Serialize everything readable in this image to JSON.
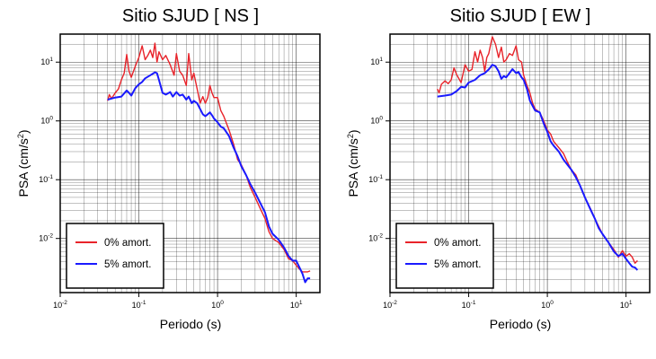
{
  "chart_data": [
    {
      "type": "line",
      "title": "Sitio SJUD [ NS ]",
      "xlabel": "Periodo (s)",
      "ylabel": "PSA (cm/s2)",
      "ylabel_parts": [
        "PSA (cm/s",
        "2",
        ")"
      ],
      "xscale": "log",
      "yscale": "log",
      "xlim": [
        0.01,
        20
      ],
      "ylim": [
        0.0012,
        30
      ],
      "x_ticks": [
        {
          "mant": "10",
          "exp": "-2",
          "value": 0.01
        },
        {
          "mant": "10",
          "exp": "-1",
          "value": 0.1
        },
        {
          "mant": "10",
          "exp": "0",
          "value": 1
        },
        {
          "mant": "10",
          "exp": "1",
          "value": 10
        }
      ],
      "y_ticks": [
        {
          "mant": "10",
          "exp": "-2",
          "value": 0.01
        },
        {
          "mant": "10",
          "exp": "-1",
          "value": 0.1
        },
        {
          "mant": "10",
          "exp": "0",
          "value": 1
        },
        {
          "mant": "10",
          "exp": "1",
          "value": 10
        }
      ],
      "grid": true,
      "legend_position": "bottom-left",
      "series": [
        {
          "name": "0% amort.",
          "color": "#e8232a",
          "points": [
            [
              0.04,
              2.2
            ],
            [
              0.042,
              2.8
            ],
            [
              0.045,
              2.4
            ],
            [
              0.05,
              3.0
            ],
            [
              0.055,
              3.5
            ],
            [
              0.06,
              5.0
            ],
            [
              0.065,
              6.5
            ],
            [
              0.07,
              13.5
            ],
            [
              0.075,
              7.0
            ],
            [
              0.08,
              5.5
            ],
            [
              0.09,
              8.5
            ],
            [
              0.1,
              12.0
            ],
            [
              0.11,
              19.0
            ],
            [
              0.12,
              11.0
            ],
            [
              0.13,
              13.0
            ],
            [
              0.14,
              16.0
            ],
            [
              0.15,
              12.0
            ],
            [
              0.16,
              21.0
            ],
            [
              0.17,
              10.0
            ],
            [
              0.18,
              15.0
            ],
            [
              0.2,
              11.0
            ],
            [
              0.22,
              13.0
            ],
            [
              0.25,
              9.0
            ],
            [
              0.28,
              6.0
            ],
            [
              0.3,
              14.0
            ],
            [
              0.33,
              7.0
            ],
            [
              0.36,
              6.0
            ],
            [
              0.4,
              4.0
            ],
            [
              0.43,
              14.0
            ],
            [
              0.47,
              5.0
            ],
            [
              0.5,
              6.5
            ],
            [
              0.55,
              3.5
            ],
            [
              0.6,
              2.0
            ],
            [
              0.65,
              2.6
            ],
            [
              0.7,
              2.0
            ],
            [
              0.75,
              2.5
            ],
            [
              0.8,
              4.0
            ],
            [
              0.85,
              3.0
            ],
            [
              0.9,
              2.5
            ],
            [
              1.0,
              2.5
            ],
            [
              1.1,
              1.5
            ],
            [
              1.2,
              1.2
            ],
            [
              1.4,
              0.7
            ],
            [
              1.6,
              0.4
            ],
            [
              1.8,
              0.22
            ],
            [
              2.0,
              0.18
            ],
            [
              2.3,
              0.12
            ],
            [
              2.6,
              0.075
            ],
            [
              3.0,
              0.05
            ],
            [
              3.5,
              0.032
            ],
            [
              4.0,
              0.022
            ],
            [
              4.5,
              0.013
            ],
            [
              5.0,
              0.01
            ],
            [
              6.0,
              0.0085
            ],
            [
              7.0,
              0.0065
            ],
            [
              8.0,
              0.0045
            ],
            [
              9.0,
              0.0042
            ],
            [
              10.0,
              0.0035
            ],
            [
              11.0,
              0.003
            ],
            [
              12.0,
              0.0027
            ],
            [
              13.0,
              0.0027
            ],
            [
              14.0,
              0.0027
            ],
            [
              15.0,
              0.0028
            ]
          ]
        },
        {
          "name": "5% amort.",
          "color": "#1a1aff",
          "points": [
            [
              0.04,
              2.3
            ],
            [
              0.05,
              2.5
            ],
            [
              0.06,
              2.6
            ],
            [
              0.07,
              3.3
            ],
            [
              0.075,
              3.0
            ],
            [
              0.08,
              2.7
            ],
            [
              0.09,
              3.6
            ],
            [
              0.1,
              4.2
            ],
            [
              0.11,
              4.6
            ],
            [
              0.12,
              5.3
            ],
            [
              0.14,
              6.0
            ],
            [
              0.16,
              6.7
            ],
            [
              0.17,
              6.5
            ],
            [
              0.18,
              5.0
            ],
            [
              0.2,
              3.0
            ],
            [
              0.22,
              2.8
            ],
            [
              0.25,
              3.1
            ],
            [
              0.27,
              2.6
            ],
            [
              0.3,
              3.1
            ],
            [
              0.33,
              2.7
            ],
            [
              0.36,
              2.8
            ],
            [
              0.4,
              2.3
            ],
            [
              0.43,
              2.6
            ],
            [
              0.47,
              2.0
            ],
            [
              0.5,
              2.2
            ],
            [
              0.55,
              2.0
            ],
            [
              0.6,
              1.6
            ],
            [
              0.65,
              1.3
            ],
            [
              0.7,
              1.2
            ],
            [
              0.75,
              1.3
            ],
            [
              0.8,
              1.4
            ],
            [
              0.85,
              1.25
            ],
            [
              0.9,
              1.1
            ],
            [
              1.0,
              0.95
            ],
            [
              1.1,
              0.8
            ],
            [
              1.2,
              0.75
            ],
            [
              1.4,
              0.55
            ],
            [
              1.6,
              0.35
            ],
            [
              1.8,
              0.25
            ],
            [
              2.0,
              0.17
            ],
            [
              2.3,
              0.12
            ],
            [
              2.6,
              0.085
            ],
            [
              3.0,
              0.06
            ],
            [
              3.5,
              0.04
            ],
            [
              4.0,
              0.028
            ],
            [
              4.5,
              0.016
            ],
            [
              5.0,
              0.012
            ],
            [
              6.0,
              0.0095
            ],
            [
              7.0,
              0.007
            ],
            [
              8.0,
              0.005
            ],
            [
              9.0,
              0.0042
            ],
            [
              10.0,
              0.0042
            ],
            [
              11.0,
              0.0032
            ],
            [
              12.0,
              0.0025
            ],
            [
              13.0,
              0.0018
            ],
            [
              14.0,
              0.0021
            ],
            [
              15.0,
              0.0021
            ]
          ]
        }
      ]
    },
    {
      "type": "line",
      "title": "Sitio SJUD [ EW ]",
      "xlabel": "Periodo (s)",
      "ylabel": "PSA (cm/s2)",
      "ylabel_parts": [
        "PSA (cm/s",
        "2",
        ")"
      ],
      "xscale": "log",
      "yscale": "log",
      "xlim": [
        0.01,
        20
      ],
      "ylim": [
        0.0012,
        30
      ],
      "x_ticks": [
        {
          "mant": "10",
          "exp": "-2",
          "value": 0.01
        },
        {
          "mant": "10",
          "exp": "-1",
          "value": 0.1
        },
        {
          "mant": "10",
          "exp": "0",
          "value": 1
        },
        {
          "mant": "10",
          "exp": "1",
          "value": 10
        }
      ],
      "y_ticks": [
        {
          "mant": "10",
          "exp": "-2",
          "value": 0.01
        },
        {
          "mant": "10",
          "exp": "-1",
          "value": 0.1
        },
        {
          "mant": "10",
          "exp": "0",
          "value": 1
        },
        {
          "mant": "10",
          "exp": "1",
          "value": 10
        }
      ],
      "grid": true,
      "legend_position": "bottom-left",
      "series": [
        {
          "name": "0% amort.",
          "color": "#e8232a",
          "points": [
            [
              0.04,
              3.5
            ],
            [
              0.042,
              3.0
            ],
            [
              0.045,
              4.2
            ],
            [
              0.05,
              4.8
            ],
            [
              0.055,
              4.3
            ],
            [
              0.06,
              5.0
            ],
            [
              0.065,
              8.0
            ],
            [
              0.07,
              6.2
            ],
            [
              0.08,
              4.5
            ],
            [
              0.09,
              9.0
            ],
            [
              0.1,
              7.0
            ],
            [
              0.11,
              7.5
            ],
            [
              0.12,
              15.0
            ],
            [
              0.13,
              10.0
            ],
            [
              0.14,
              16.0
            ],
            [
              0.15,
              12.0
            ],
            [
              0.16,
              7.0
            ],
            [
              0.17,
              12.0
            ],
            [
              0.18,
              14.0
            ],
            [
              0.19,
              20.0
            ],
            [
              0.2,
              27.0
            ],
            [
              0.22,
              20.0
            ],
            [
              0.24,
              12.0
            ],
            [
              0.26,
              18.0
            ],
            [
              0.28,
              10.0
            ],
            [
              0.3,
              11.0
            ],
            [
              0.33,
              14.0
            ],
            [
              0.36,
              13.0
            ],
            [
              0.4,
              19.0
            ],
            [
              0.43,
              11.0
            ],
            [
              0.47,
              10.0
            ],
            [
              0.5,
              6.0
            ],
            [
              0.55,
              4.0
            ],
            [
              0.6,
              3.0
            ],
            [
              0.65,
              2.0
            ],
            [
              0.7,
              1.6
            ],
            [
              0.8,
              1.4
            ],
            [
              0.9,
              1.0
            ],
            [
              1.0,
              0.7
            ],
            [
              1.1,
              0.6
            ],
            [
              1.2,
              0.45
            ],
            [
              1.4,
              0.35
            ],
            [
              1.6,
              0.28
            ],
            [
              1.8,
              0.2
            ],
            [
              2.0,
              0.15
            ],
            [
              2.3,
              0.12
            ],
            [
              2.6,
              0.08
            ],
            [
              3.0,
              0.05
            ],
            [
              3.5,
              0.033
            ],
            [
              4.0,
              0.022
            ],
            [
              4.5,
              0.016
            ],
            [
              5.0,
              0.012
            ],
            [
              6.0,
              0.0085
            ],
            [
              7.0,
              0.0065
            ],
            [
              8.0,
              0.0048
            ],
            [
              9.0,
              0.0062
            ],
            [
              10.0,
              0.005
            ],
            [
              11.0,
              0.0055
            ],
            [
              12.0,
              0.0048
            ],
            [
              13.0,
              0.0038
            ],
            [
              14.0,
              0.0042
            ]
          ]
        },
        {
          "name": "5% amort.",
          "color": "#1a1aff",
          "points": [
            [
              0.04,
              2.6
            ],
            [
              0.05,
              2.7
            ],
            [
              0.06,
              2.8
            ],
            [
              0.07,
              3.2
            ],
            [
              0.08,
              3.8
            ],
            [
              0.09,
              3.7
            ],
            [
              0.1,
              4.5
            ],
            [
              0.12,
              5.0
            ],
            [
              0.14,
              6.0
            ],
            [
              0.16,
              6.5
            ],
            [
              0.18,
              7.5
            ],
            [
              0.2,
              9.0
            ],
            [
              0.22,
              8.5
            ],
            [
              0.24,
              7.0
            ],
            [
              0.26,
              5.2
            ],
            [
              0.28,
              5.8
            ],
            [
              0.3,
              5.5
            ],
            [
              0.33,
              6.5
            ],
            [
              0.36,
              7.6
            ],
            [
              0.4,
              6.5
            ],
            [
              0.43,
              6.8
            ],
            [
              0.47,
              5.5
            ],
            [
              0.5,
              5.0
            ],
            [
              0.55,
              3.5
            ],
            [
              0.6,
              2.2
            ],
            [
              0.65,
              1.8
            ],
            [
              0.7,
              1.5
            ],
            [
              0.8,
              1.4
            ],
            [
              0.9,
              0.9
            ],
            [
              1.0,
              0.65
            ],
            [
              1.1,
              0.45
            ],
            [
              1.2,
              0.38
            ],
            [
              1.4,
              0.3
            ],
            [
              1.6,
              0.22
            ],
            [
              1.8,
              0.18
            ],
            [
              2.0,
              0.15
            ],
            [
              2.3,
              0.11
            ],
            [
              2.6,
              0.08
            ],
            [
              3.0,
              0.05
            ],
            [
              3.5,
              0.032
            ],
            [
              4.0,
              0.022
            ],
            [
              4.5,
              0.015
            ],
            [
              5.0,
              0.012
            ],
            [
              6.0,
              0.0085
            ],
            [
              7.0,
              0.006
            ],
            [
              8.0,
              0.005
            ],
            [
              9.0,
              0.0055
            ],
            [
              10.0,
              0.0045
            ],
            [
              11.0,
              0.0038
            ],
            [
              12.0,
              0.0033
            ],
            [
              13.0,
              0.0032
            ],
            [
              14.0,
              0.0029
            ]
          ]
        }
      ]
    }
  ]
}
